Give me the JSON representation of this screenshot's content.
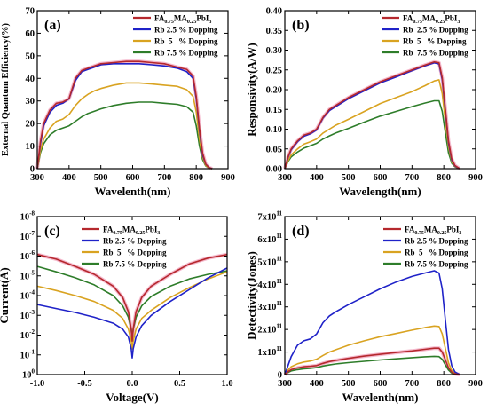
{
  "colors": {
    "fa": "#b5282d",
    "fa_glow": "#f2a8c0",
    "rb25": "#1f22c8",
    "rb5": "#d9a321",
    "rb75": "#2e7d2a"
  },
  "legend_parts": {
    "fa": {
      "fa": "FA",
      "fa_sub": "0.75",
      "ma": "MA",
      "ma_sub": "0.25",
      "pb": "PbI",
      "pb_sub": "3"
    }
  },
  "chart_data": [
    {
      "type": "line",
      "panel_label": "(a)",
      "xlabel": "Wavelenth(nm)",
      "ylabel": "External Quantum Efficiency(%)",
      "xlim": [
        300,
        900
      ],
      "ylim": [
        0,
        70
      ],
      "xticks": [
        "300",
        "400",
        "500",
        "600",
        "700",
        "800",
        "900"
      ],
      "yticks": [
        "0",
        "10",
        "20",
        "30",
        "40",
        "50",
        "60",
        "70"
      ],
      "legend_position": "top-right",
      "series": [
        {
          "name": "FA0.75MA0.25PbI3",
          "color": "fa",
          "x": [
            300,
            310,
            320,
            340,
            360,
            380,
            400,
            420,
            440,
            460,
            480,
            500,
            540,
            580,
            620,
            660,
            700,
            740,
            770,
            790,
            800,
            810,
            820,
            830,
            840,
            850
          ],
          "y": [
            0,
            12,
            20,
            26,
            29,
            29.5,
            31,
            40,
            43.5,
            44.5,
            45.5,
            46.5,
            47,
            47.5,
            47.5,
            47,
            46.5,
            45,
            44,
            41,
            32,
            18,
            7,
            2,
            0.5,
            0
          ]
        },
        {
          "name": "Rb 2.5 % Dopping",
          "color": "rb25",
          "x": [
            300,
            310,
            320,
            340,
            360,
            380,
            400,
            420,
            440,
            460,
            480,
            500,
            540,
            580,
            620,
            660,
            700,
            740,
            770,
            790,
            800,
            810,
            820,
            830,
            840,
            850
          ],
          "y": [
            0,
            11,
            19,
            25,
            28,
            29,
            31,
            39,
            43,
            44,
            45,
            46,
            46.5,
            46.5,
            46.5,
            46,
            45.5,
            44.5,
            43,
            40,
            31,
            17,
            6,
            2,
            0.5,
            0
          ]
        },
        {
          "name": "Rb  5   % Dopping",
          "color": "rb5",
          "x": [
            300,
            310,
            320,
            340,
            360,
            380,
            400,
            420,
            440,
            460,
            480,
            500,
            540,
            580,
            620,
            660,
            700,
            740,
            770,
            790,
            800,
            810,
            820,
            830,
            840,
            850
          ],
          "y": [
            0,
            8,
            13,
            18,
            21,
            22,
            24,
            28,
            31,
            33,
            34.5,
            35.5,
            37,
            38,
            38,
            37.5,
            37,
            36.5,
            35,
            32,
            25,
            13,
            5,
            1.5,
            0.3,
            0
          ]
        },
        {
          "name": "Rb 7.5 % Dopping",
          "color": "rb75",
          "x": [
            300,
            310,
            320,
            340,
            360,
            380,
            400,
            420,
            440,
            460,
            480,
            500,
            540,
            580,
            620,
            660,
            700,
            740,
            770,
            790,
            800,
            810,
            820,
            830,
            840,
            850
          ],
          "y": [
            0,
            7,
            11,
            15,
            17,
            18,
            19,
            21,
            23,
            24.5,
            25.5,
            26.5,
            28,
            29,
            29.5,
            29.5,
            29,
            28.5,
            27.5,
            25,
            19,
            10,
            4,
            1.2,
            0.3,
            0
          ]
        }
      ]
    },
    {
      "type": "line",
      "panel_label": "(b)",
      "xlabel": "Wavelength(nm)",
      "ylabel": "Responsivity(A/W)",
      "xlim": [
        300,
        900
      ],
      "ylim": [
        0,
        0.4
      ],
      "xticks": [
        "300",
        "400",
        "500",
        "600",
        "700",
        "800",
        "900"
      ],
      "yticks": [
        "0.00",
        "0.05",
        "0.10",
        "0.15",
        "0.20",
        "0.25",
        "0.30",
        "0.35",
        "0.40"
      ],
      "legend_position": "top-right",
      "series": [
        {
          "name": "FA0.75MA0.25PbI3",
          "color": "fa",
          "x": [
            300,
            310,
            320,
            340,
            360,
            380,
            400,
            420,
            440,
            460,
            500,
            550,
            600,
            650,
            700,
            740,
            770,
            785,
            795,
            805,
            815,
            825,
            835,
            850
          ],
          "y": [
            0,
            0.03,
            0.05,
            0.07,
            0.085,
            0.09,
            0.1,
            0.13,
            0.15,
            0.16,
            0.18,
            0.2,
            0.22,
            0.235,
            0.25,
            0.262,
            0.27,
            0.268,
            0.23,
            0.15,
            0.07,
            0.025,
            0.008,
            0
          ]
        },
        {
          "name": "Rb  2.5 % Dopping",
          "color": "rb25",
          "x": [
            300,
            310,
            320,
            340,
            360,
            380,
            400,
            420,
            440,
            460,
            500,
            550,
            600,
            650,
            700,
            740,
            770,
            785,
            795,
            805,
            815,
            825,
            835,
            850
          ],
          "y": [
            0,
            0.028,
            0.048,
            0.068,
            0.082,
            0.088,
            0.098,
            0.128,
            0.147,
            0.157,
            0.177,
            0.197,
            0.217,
            0.232,
            0.248,
            0.26,
            0.268,
            0.265,
            0.225,
            0.145,
            0.065,
            0.022,
            0.007,
            0
          ]
        },
        {
          "name": "Rb  5   % Dopping",
          "color": "rb5",
          "x": [
            300,
            310,
            320,
            340,
            360,
            380,
            400,
            420,
            440,
            460,
            500,
            550,
            600,
            650,
            700,
            740,
            770,
            785,
            795,
            805,
            815,
            825,
            835,
            850
          ],
          "y": [
            0,
            0.02,
            0.035,
            0.05,
            0.062,
            0.068,
            0.075,
            0.09,
            0.1,
            0.11,
            0.125,
            0.145,
            0.165,
            0.18,
            0.195,
            0.21,
            0.222,
            0.225,
            0.19,
            0.12,
            0.055,
            0.018,
            0.006,
            0
          ]
        },
        {
          "name": "Rb  7.5 % Dopping",
          "color": "rb75",
          "x": [
            300,
            310,
            320,
            340,
            360,
            380,
            400,
            420,
            440,
            460,
            500,
            550,
            600,
            650,
            700,
            740,
            770,
            785,
            795,
            805,
            815,
            825,
            835,
            850
          ],
          "y": [
            0,
            0.018,
            0.03,
            0.042,
            0.052,
            0.058,
            0.064,
            0.075,
            0.083,
            0.09,
            0.102,
            0.118,
            0.133,
            0.145,
            0.157,
            0.166,
            0.172,
            0.172,
            0.145,
            0.09,
            0.04,
            0.014,
            0.005,
            0
          ]
        }
      ]
    },
    {
      "type": "line",
      "panel_label": "(c)",
      "xlabel": "Voltage(V)",
      "ylabel": "Current(A)",
      "xlim": [
        -1.0,
        1.0
      ],
      "ylim": [
        1e-08,
        1
      ],
      "yscale": "log",
      "xticks": [
        "-1.0",
        "-0.5",
        "0.0",
        "0.5",
        "1.0"
      ],
      "yticks": [
        {
          "base": "10",
          "exp": "0"
        },
        {
          "base": "10",
          "exp": "-1"
        },
        {
          "base": "10",
          "exp": "-2"
        },
        {
          "base": "10",
          "exp": "-3"
        },
        {
          "base": "10",
          "exp": "-4"
        },
        {
          "base": "10",
          "exp": "-5"
        },
        {
          "base": "10",
          "exp": "-6"
        },
        {
          "base": "10",
          "exp": "-7"
        },
        {
          "base": "10",
          "exp": "-8"
        }
      ],
      "legend_position": "top-center",
      "series": [
        {
          "name": "FA0.75MA0.25PbI3",
          "color": "fa",
          "x": [
            -1.0,
            -0.8,
            -0.6,
            -0.4,
            -0.2,
            -0.1,
            -0.04,
            -0.01,
            0.0,
            0.01,
            0.04,
            0.1,
            0.2,
            0.4,
            0.6,
            0.8,
            1.0
          ],
          "y": [
            0.012,
            0.007,
            0.003,
            0.0012,
            0.0003,
            8e-05,
            1.5e-05,
            2e-06,
            5e-07,
            2e-06,
            1.5e-05,
            8e-05,
            0.0003,
            0.0012,
            0.004,
            0.008,
            0.012
          ]
        },
        {
          "name": "Rb 2.5 % Dopping",
          "color": "rb25",
          "x": [
            -1.0,
            -0.8,
            -0.6,
            -0.4,
            -0.2,
            -0.1,
            -0.04,
            -0.01,
            0.0,
            0.01,
            0.04,
            0.1,
            0.2,
            0.4,
            0.6,
            0.8,
            1.0
          ],
          "y": [
            3.5e-05,
            2.2e-05,
            1.4e-05,
            8e-06,
            4e-06,
            2e-06,
            8e-07,
            2e-07,
            7e-08,
            2e-07,
            8e-07,
            3e-06,
            1e-05,
            5e-05,
            0.0002,
            0.0008,
            0.0025
          ]
        },
        {
          "name": "Rb  5   % Dopping",
          "color": "rb5",
          "x": [
            -1.0,
            -0.8,
            -0.6,
            -0.4,
            -0.2,
            -0.1,
            -0.04,
            -0.01,
            0.0,
            0.01,
            0.04,
            0.1,
            0.2,
            0.4,
            0.6,
            0.8,
            1.0
          ],
          "y": [
            0.0003,
            0.00018,
            0.0001,
            5e-05,
            1.8e-05,
            7e-06,
            2e-06,
            5e-07,
            2e-07,
            5e-07,
            2e-06,
            7e-06,
            1.8e-05,
            8e-05,
            0.00025,
            0.0007,
            0.0016
          ]
        },
        {
          "name": "Rb 7.5 % Dopping",
          "color": "rb75",
          "x": [
            -1.0,
            -0.8,
            -0.6,
            -0.4,
            -0.2,
            -0.1,
            -0.04,
            -0.01,
            0.0,
            0.01,
            0.04,
            0.1,
            0.2,
            0.4,
            0.6,
            0.8,
            1.0
          ],
          "y": [
            0.003,
            0.0016,
            0.0008,
            0.00035,
            0.0001,
            3e-05,
            8e-06,
            2e-06,
            6e-07,
            2e-06,
            8e-06,
            3e-05,
            9e-05,
            0.0003,
            0.0007,
            0.0012,
            0.0018
          ]
        }
      ]
    },
    {
      "type": "line",
      "panel_label": "(d)",
      "xlabel": "Wavelenth(nm)",
      "ylabel": "Detectivity(Jones)",
      "xlim": [
        300,
        900
      ],
      "ylim": [
        0,
        700000000000.0
      ],
      "xticks": [
        "300",
        "400",
        "500",
        "600",
        "700",
        "800",
        "900"
      ],
      "yticks": [
        {
          "mant": "0",
          "exp": ""
        },
        {
          "mant": "1x10",
          "exp": "11"
        },
        {
          "mant": "2x10",
          "exp": "11"
        },
        {
          "mant": "3x10",
          "exp": "11"
        },
        {
          "mant": "4x10",
          "exp": "11"
        },
        {
          "mant": "5x10",
          "exp": "11"
        },
        {
          "mant": "6x10",
          "exp": "11"
        },
        {
          "mant": "7x10",
          "exp": "11"
        }
      ],
      "legend_position": "top-right",
      "series": [
        {
          "name": "FA0.75MA0.25PbI3",
          "color": "fa",
          "x": [
            300,
            310,
            320,
            340,
            360,
            380,
            400,
            420,
            440,
            460,
            500,
            550,
            600,
            650,
            700,
            740,
            770,
            785,
            795,
            805,
            815,
            825,
            835,
            850
          ],
          "y": [
            0,
            13000000000.0,
            22000000000.0,
            30000000000.0,
            35000000000.0,
            37000000000.0,
            40000000000.0,
            50000000000.0,
            58000000000.0,
            63000000000.0,
            72000000000.0,
            82000000000.0,
            90000000000.0,
            98000000000.0,
            105000000000.0,
            112000000000.0,
            117000000000.0,
            117000000000.0,
            100000000000.0,
            65000000000.0,
            30000000000.0,
            11000000000.0,
            3500000000.0,
            0
          ]
        },
        {
          "name": "Rb 2.5 % Dopping",
          "color": "rb25",
          "x": [
            300,
            310,
            320,
            340,
            360,
            380,
            400,
            420,
            440,
            460,
            500,
            550,
            600,
            650,
            700,
            740,
            770,
            785,
            795,
            805,
            815,
            825,
            835,
            850
          ],
          "y": [
            0,
            40000000000.0,
            80000000000.0,
            130000000000.0,
            150000000000.0,
            158000000000.0,
            180000000000.0,
            230000000000.0,
            260000000000.0,
            278000000000.0,
            310000000000.0,
            345000000000.0,
            380000000000.0,
            410000000000.0,
            435000000000.0,
            450000000000.0,
            460000000000.0,
            450000000000.0,
            380000000000.0,
            240000000000.0,
            110000000000.0,
            40000000000.0,
            12000000000.0,
            0
          ]
        },
        {
          "name": "Rb  5   % Dopping",
          "color": "rb5",
          "x": [
            300,
            310,
            320,
            340,
            360,
            380,
            400,
            420,
            440,
            460,
            500,
            550,
            600,
            650,
            700,
            740,
            770,
            785,
            795,
            805,
            815,
            825,
            835,
            850
          ],
          "y": [
            0,
            20000000000.0,
            35000000000.0,
            48000000000.0,
            56000000000.0,
            60000000000.0,
            68000000000.0,
            85000000000.0,
            100000000000.0,
            110000000000.0,
            130000000000.0,
            150000000000.0,
            168000000000.0,
            182000000000.0,
            197000000000.0,
            208000000000.0,
            215000000000.0,
            213000000000.0,
            180000000000.0,
            115000000000.0,
            52000000000.0,
            19000000000.0,
            6000000000.0,
            0
          ]
        },
        {
          "name": "Rb 7.5 % Dopping",
          "color": "rb75",
          "x": [
            300,
            310,
            320,
            340,
            360,
            380,
            400,
            420,
            440,
            460,
            500,
            550,
            600,
            650,
            700,
            740,
            770,
            785,
            795,
            805,
            815,
            825,
            835,
            850
          ],
          "y": [
            0,
            10000000000.0,
            16000000000.0,
            22000000000.0,
            26000000000.0,
            28000000000.0,
            31000000000.0,
            38000000000.0,
            43000000000.0,
            47000000000.0,
            53000000000.0,
            59000000000.0,
            65000000000.0,
            70000000000.0,
            75000000000.0,
            79000000000.0,
            81000000000.0,
            80000000000.0,
            68000000000.0,
            43000000000.0,
            20000000000.0,
            7000000000.0,
            2000000000.0,
            0
          ]
        }
      ]
    }
  ]
}
